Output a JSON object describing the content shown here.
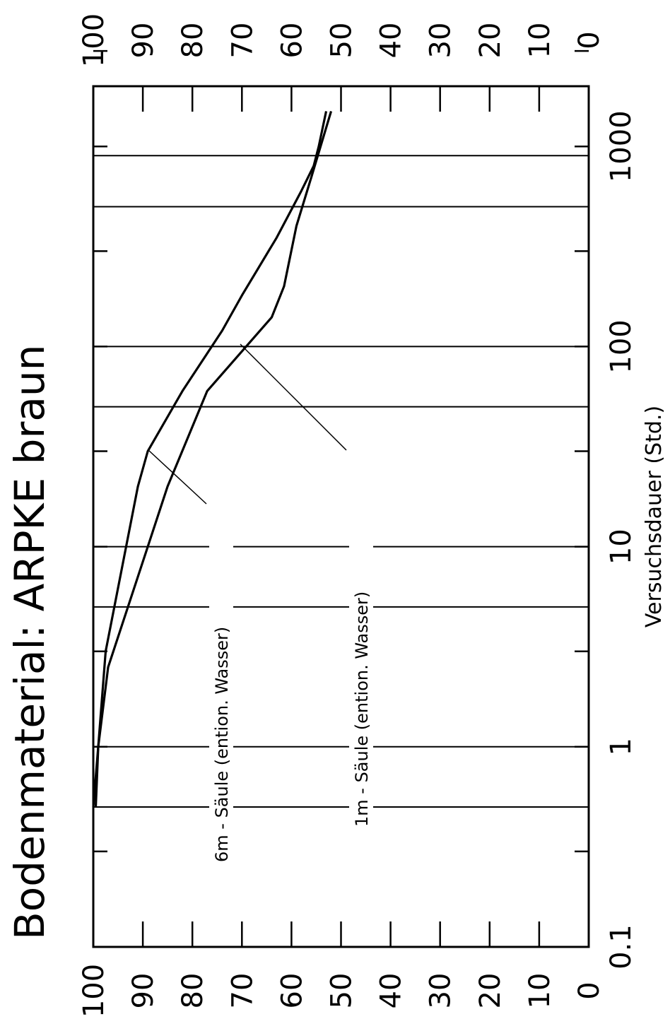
{
  "chart_data": {
    "type": "line",
    "title": "Bodenmaterial:  ARPKE  braun",
    "xlabel": "Versuchsdauer  (Std.)",
    "ylabel": "",
    "x_scale": "log",
    "xlim": [
      0.1,
      2000
    ],
    "ylim": [
      0,
      100
    ],
    "x_tick_labels": [
      "0.1",
      "1",
      "10",
      "100",
      "1000"
    ],
    "y_tick_labels": [
      "100",
      "90",
      "80",
      "70",
      "60",
      "50",
      "40",
      "30",
      "20",
      "10",
      "0"
    ],
    "grid": false,
    "series": [
      {
        "name": "6m  -  Säule (ention.  Wasser)",
        "x": [
          0.5,
          1,
          3,
          20,
          30,
          60,
          120,
          180,
          350,
          600,
          800,
          1000,
          1500
        ],
        "y": [
          99.5,
          99,
          97.5,
          91,
          89,
          82,
          74,
          70,
          63,
          58,
          55.5,
          54.5,
          53
        ]
      },
      {
        "name": "1m  -  Säule (ention.  Wasser)",
        "x": [
          0.5,
          1,
          2.5,
          10,
          20,
          60,
          140,
          200,
          400,
          700,
          1500
        ],
        "y": [
          100,
          99,
          97,
          89,
          85,
          77,
          64,
          61.5,
          59,
          56,
          52
        ]
      }
    ],
    "annotations": [
      "6m  -  Säule (ention.  Wasser)",
      "1m  -  Säule (ention.  Wasser)"
    ]
  }
}
